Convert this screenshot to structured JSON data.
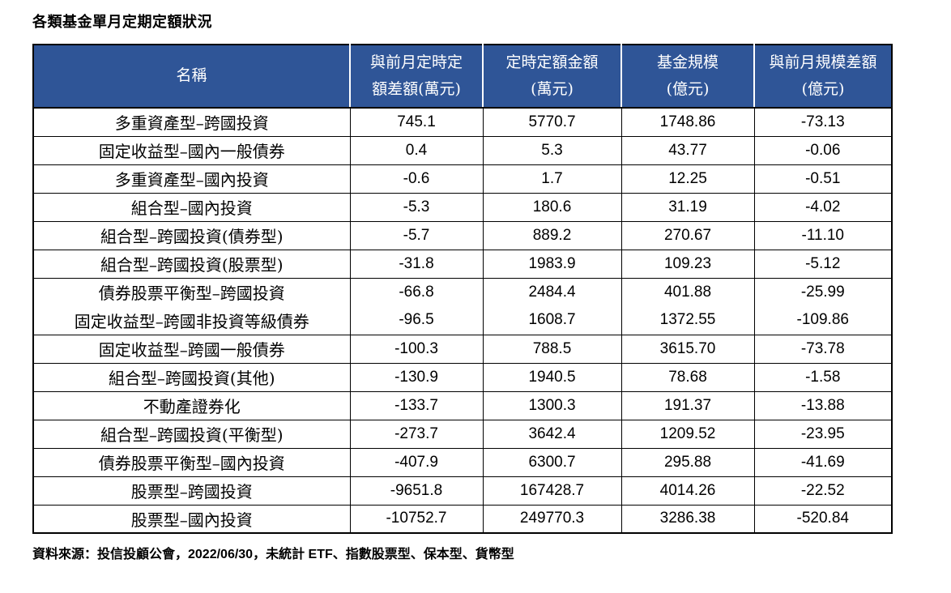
{
  "title": "各類基金單月定期定額狀況",
  "table": {
    "headers": [
      "名稱",
      "與前月定時定\n額差額(萬元)",
      "定時定額金額\n(萬元)",
      "基金規模\n(億元)",
      "與前月規模差額\n(億元)"
    ],
    "rows": [
      {
        "name": "多重資產型–跨國投資",
        "dca_diff": "745.1",
        "dca_amount": "5770.7",
        "fund_size": "1748.86",
        "size_diff": "-73.13"
      },
      {
        "name": "固定收益型–國內一般債券",
        "dca_diff": "0.4",
        "dca_amount": "5.3",
        "fund_size": "43.77",
        "size_diff": "-0.06"
      },
      {
        "name": "多重資產型–國內投資",
        "dca_diff": "-0.6",
        "dca_amount": "1.7",
        "fund_size": "12.25",
        "size_diff": "-0.51"
      },
      {
        "name": "組合型–國內投資",
        "dca_diff": "-5.3",
        "dca_amount": "180.6",
        "fund_size": "31.19",
        "size_diff": "-4.02"
      },
      {
        "name": "組合型–跨國投資(債券型)",
        "dca_diff": "-5.7",
        "dca_amount": "889.2",
        "fund_size": "270.67",
        "size_diff": "-11.10"
      },
      {
        "name": "組合型–跨國投資(股票型)",
        "dca_diff": "-31.8",
        "dca_amount": "1983.9",
        "fund_size": "109.23",
        "size_diff": "-5.12"
      },
      {
        "name": "債券股票平衡型–跨國投資",
        "dca_diff": "-66.8",
        "dca_amount": "2484.4",
        "fund_size": "401.88",
        "size_diff": "-25.99",
        "group_with_next": true
      },
      {
        "name": "固定收益型–跨國非投資等級債券",
        "dca_diff": "-96.5",
        "dca_amount": "1608.7",
        "fund_size": "1372.55",
        "size_diff": "-109.86",
        "group_with_prev": true
      },
      {
        "name": "固定收益型–跨國一般債券",
        "dca_diff": "-100.3",
        "dca_amount": "788.5",
        "fund_size": "3615.70",
        "size_diff": "-73.78"
      },
      {
        "name": "組合型–跨國投資(其他)",
        "dca_diff": "-130.9",
        "dca_amount": "1940.5",
        "fund_size": "78.68",
        "size_diff": "-1.58"
      },
      {
        "name": "不動產證券化",
        "dca_diff": "-133.7",
        "dca_amount": "1300.3",
        "fund_size": "191.37",
        "size_diff": "-13.88"
      },
      {
        "name": "組合型–跨國投資(平衡型)",
        "dca_diff": "-273.7",
        "dca_amount": "3642.4",
        "fund_size": "1209.52",
        "size_diff": "-23.95"
      },
      {
        "name": "債券股票平衡型–國內投資",
        "dca_diff": "-407.9",
        "dca_amount": "6300.7",
        "fund_size": "295.88",
        "size_diff": "-41.69"
      },
      {
        "name": "股票型–跨國投資",
        "dca_diff": "-9651.8",
        "dca_amount": "167428.7",
        "fund_size": "4014.26",
        "size_diff": "-22.52"
      },
      {
        "name": "股票型–國內投資",
        "dca_diff": "-10752.7",
        "dca_amount": "249770.3",
        "fund_size": "3286.38",
        "size_diff": "-520.84"
      }
    ]
  },
  "footer": "資料來源：投信投顧公會，2022/06/30，未統計 ETF、指數股票型、保本型、貨幣型",
  "colors": {
    "header_bg": "#2F5597",
    "header_text": "#FFFFFF",
    "border": "#000000"
  }
}
